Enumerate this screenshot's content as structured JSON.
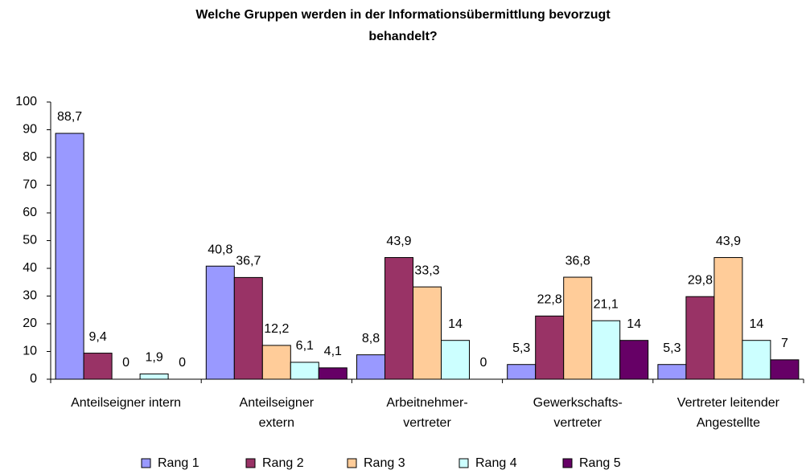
{
  "chart_data": {
    "type": "bar",
    "title": [
      "Welche Gruppen werden in der Informationsübermittlung bevorzugt",
      "behandelt?"
    ],
    "categories": [
      [
        "Anteilseigner intern"
      ],
      [
        "Anteilseigner",
        "extern"
      ],
      [
        "Arbeitnehmer-",
        "vertreter"
      ],
      [
        "Gewerkschafts-",
        "vertreter"
      ],
      [
        "Vertreter leitender",
        "Angestellte"
      ]
    ],
    "series": [
      {
        "name": "Rang 1",
        "color": "#9999ff",
        "values": [
          88.7,
          40.8,
          8.8,
          5.3,
          5.3
        ],
        "value_labels": [
          "88,7",
          "40,8",
          "8,8",
          "5,3",
          "5,3"
        ]
      },
      {
        "name": "Rang 2",
        "color": "#993366",
        "values": [
          9.4,
          36.7,
          43.9,
          22.8,
          29.8
        ],
        "value_labels": [
          "9,4",
          "36,7",
          "43,9",
          "22,8",
          "29,8"
        ]
      },
      {
        "name": "Rang 3",
        "color": "#ffcc99",
        "values": [
          0,
          12.2,
          33.3,
          36.8,
          43.9
        ],
        "value_labels": [
          "0",
          "12,2",
          "33,3",
          "36,8",
          "43,9"
        ]
      },
      {
        "name": "Rang 4",
        "color": "#ccffff",
        "values": [
          1.9,
          6.1,
          14,
          21.1,
          14
        ],
        "value_labels": [
          "1,9",
          "6,1",
          "14",
          "21,1",
          "14"
        ]
      },
      {
        "name": "Rang 5",
        "color": "#660066",
        "values": [
          0,
          4.1,
          0,
          14,
          7
        ],
        "value_labels": [
          "0",
          "4,1",
          "0",
          "14",
          "7"
        ]
      }
    ],
    "ylim": [
      0,
      100
    ],
    "yticks": [
      0,
      10,
      20,
      30,
      40,
      50,
      60,
      70,
      80,
      90,
      100
    ],
    "grid": false,
    "legend": "bottom"
  }
}
